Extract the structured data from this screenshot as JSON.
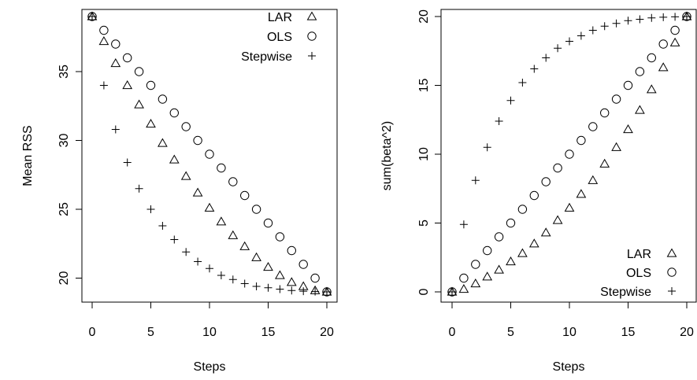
{
  "chart_data": [
    {
      "type": "scatter",
      "xlabel": "Steps",
      "ylabel": "Mean RSS",
      "xlim": [
        0,
        20
      ],
      "ylim": [
        18.9,
        39
      ],
      "xticks": [
        "0",
        "5",
        "10",
        "15",
        "20"
      ],
      "yticks": [
        "20",
        "25",
        "30",
        "35"
      ],
      "legend_position": "top-right",
      "series": [
        {
          "name": "LAR",
          "marker": "triangle",
          "x": [
            0,
            1,
            2,
            3,
            4,
            5,
            6,
            7,
            8,
            9,
            10,
            11,
            12,
            13,
            14,
            15,
            16,
            17,
            18,
            19,
            20
          ],
          "y": [
            39,
            37.2,
            35.6,
            34,
            32.6,
            31.2,
            29.8,
            28.6,
            27.4,
            26.2,
            25.1,
            24.1,
            23.1,
            22.3,
            21.5,
            20.8,
            20.2,
            19.7,
            19.4,
            19.1,
            19
          ]
        },
        {
          "name": "OLS",
          "marker": "circle",
          "x": [
            0,
            1,
            2,
            3,
            4,
            5,
            6,
            7,
            8,
            9,
            10,
            11,
            12,
            13,
            14,
            15,
            16,
            17,
            18,
            19,
            20
          ],
          "y": [
            39,
            38,
            37,
            36,
            35,
            34,
            33,
            32,
            31,
            30,
            29,
            28,
            27,
            26,
            25,
            24,
            23,
            22,
            21,
            20,
            19
          ]
        },
        {
          "name": "Stepwise",
          "marker": "plus",
          "x": [
            0,
            1,
            2,
            3,
            4,
            5,
            6,
            7,
            8,
            9,
            10,
            11,
            12,
            13,
            14,
            15,
            16,
            17,
            18,
            19,
            20
          ],
          "y": [
            39,
            34,
            30.8,
            28.4,
            26.5,
            25,
            23.8,
            22.8,
            21.9,
            21.2,
            20.7,
            20.2,
            19.9,
            19.6,
            19.4,
            19.3,
            19.2,
            19.1,
            19.05,
            19.02,
            19
          ]
        }
      ]
    },
    {
      "type": "scatter",
      "xlabel": "Steps",
      "ylabel": "sum(beta^2)",
      "xlim": [
        0,
        20
      ],
      "ylim": [
        0,
        20
      ],
      "xticks": [
        "0",
        "5",
        "10",
        "15",
        "20"
      ],
      "yticks": [
        "0",
        "5",
        "10",
        "15",
        "20"
      ],
      "legend_position": "bottom-right",
      "series": [
        {
          "name": "LAR",
          "marker": "triangle",
          "x": [
            0,
            1,
            2,
            3,
            4,
            5,
            6,
            7,
            8,
            9,
            10,
            11,
            12,
            13,
            14,
            15,
            16,
            17,
            18,
            19,
            20
          ],
          "y": [
            0,
            0.2,
            0.6,
            1.1,
            1.6,
            2.2,
            2.8,
            3.5,
            4.3,
            5.2,
            6.1,
            7.1,
            8.1,
            9.3,
            10.5,
            11.8,
            13.2,
            14.7,
            16.3,
            18.1,
            20
          ]
        },
        {
          "name": "OLS",
          "marker": "circle",
          "x": [
            0,
            1,
            2,
            3,
            4,
            5,
            6,
            7,
            8,
            9,
            10,
            11,
            12,
            13,
            14,
            15,
            16,
            17,
            18,
            19,
            20
          ],
          "y": [
            0,
            1,
            2,
            3,
            4,
            5,
            6,
            7,
            8,
            9,
            10,
            11,
            12,
            13,
            14,
            15,
            16,
            17,
            18,
            19,
            20
          ]
        },
        {
          "name": "Stepwise",
          "marker": "plus",
          "x": [
            0,
            1,
            2,
            3,
            4,
            5,
            6,
            7,
            8,
            9,
            10,
            11,
            12,
            13,
            14,
            15,
            16,
            17,
            18,
            19,
            20
          ],
          "y": [
            0,
            4.9,
            8.1,
            10.5,
            12.4,
            13.9,
            15.2,
            16.2,
            17,
            17.7,
            18.2,
            18.6,
            19,
            19.3,
            19.5,
            19.7,
            19.8,
            19.9,
            19.95,
            19.98,
            20
          ]
        }
      ]
    }
  ]
}
